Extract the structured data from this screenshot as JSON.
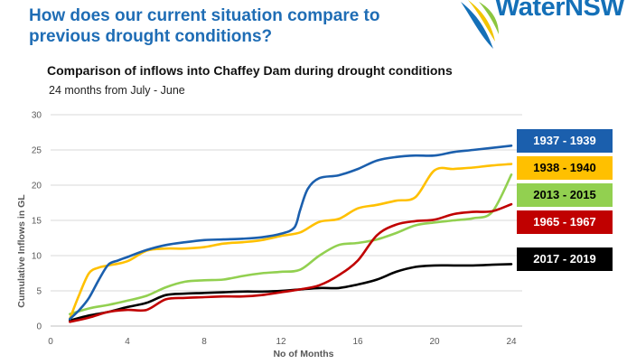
{
  "page": {
    "headline": "How does our current situation compare to previous drought conditions?",
    "logo_text": "WaterNSW"
  },
  "chart_data": {
    "type": "line",
    "title": "Comparison of inflows into Chaffey Dam during drought conditions",
    "subtitle": "24 months from July - June",
    "xlabel": "No of Months",
    "ylabel": "Cumulative Inflows in GL",
    "xlim": [
      0,
      24
    ],
    "ylim": [
      0,
      30
    ],
    "xticks": [
      0,
      4,
      8,
      12,
      16,
      20,
      24
    ],
    "yticks": [
      0,
      5,
      10,
      15,
      20,
      25,
      30
    ],
    "grid": true,
    "legend_position": "right",
    "series": [
      {
        "name": "1937 - 1939",
        "color": "#1b5fad",
        "text_color": "#ffffff",
        "x": [
          1,
          1.5,
          2,
          2.5,
          3,
          3.5,
          4,
          5,
          6,
          7,
          8,
          9,
          10,
          11,
          12,
          12.7,
          13,
          13.4,
          14,
          15,
          16,
          17,
          18,
          19,
          20,
          21,
          22,
          23,
          24
        ],
        "y": [
          1.0,
          2.3,
          4.0,
          6.5,
          8.7,
          9.3,
          9.8,
          10.8,
          11.5,
          11.9,
          12.2,
          12.3,
          12.4,
          12.6,
          13.1,
          14.0,
          16.5,
          19.5,
          21.0,
          21.4,
          22.3,
          23.5,
          24.0,
          24.2,
          24.2,
          24.7,
          25.0,
          25.3,
          25.6
        ]
      },
      {
        "name": "1938 - 1940",
        "color": "#ffc000",
        "text_color": "#000000",
        "x": [
          1,
          1.5,
          2,
          2.5,
          3,
          4,
          5,
          6,
          7,
          8,
          9,
          10,
          11,
          12,
          13,
          14,
          15,
          16,
          17,
          18,
          19,
          20,
          21,
          22,
          23,
          24
        ],
        "y": [
          1.0,
          4.5,
          7.5,
          8.3,
          8.6,
          9.2,
          10.7,
          11.0,
          11.0,
          11.2,
          11.7,
          11.9,
          12.2,
          12.8,
          13.3,
          14.8,
          15.2,
          16.7,
          17.2,
          17.8,
          18.3,
          22.1,
          22.3,
          22.5,
          22.8,
          23.0
        ]
      },
      {
        "name": "2013 - 2015",
        "color": "#92d050",
        "text_color": "#000000",
        "x": [
          1,
          2,
          3,
          4,
          5,
          6,
          7,
          8,
          9,
          10,
          11,
          12,
          13,
          14,
          15,
          16,
          17,
          18,
          19,
          20,
          21,
          22,
          23,
          24
        ],
        "y": [
          1.7,
          2.5,
          3.0,
          3.6,
          4.3,
          5.5,
          6.3,
          6.5,
          6.6,
          7.1,
          7.5,
          7.7,
          8.0,
          10.0,
          11.5,
          11.8,
          12.3,
          13.2,
          14.3,
          14.7,
          15.0,
          15.3,
          16.2,
          21.5
        ]
      },
      {
        "name": "1965 - 1967",
        "color": "#c00000",
        "text_color": "#ffffff",
        "x": [
          1,
          2,
          3,
          4,
          5,
          6,
          7,
          8,
          9,
          10,
          11,
          12,
          13,
          14,
          15,
          16,
          17,
          18,
          19,
          20,
          21,
          22,
          23,
          24
        ],
        "y": [
          0.6,
          1.2,
          2.0,
          2.3,
          2.3,
          3.8,
          4.0,
          4.1,
          4.2,
          4.2,
          4.4,
          4.8,
          5.2,
          5.8,
          7.2,
          9.3,
          12.9,
          14.4,
          14.9,
          15.1,
          15.9,
          16.2,
          16.3,
          17.3
        ]
      },
      {
        "name": "2017 - 2019",
        "color": "#000000",
        "text_color": "#ffffff",
        "x": [
          1,
          2,
          3,
          4,
          5,
          6,
          7,
          8,
          9,
          10,
          11,
          12,
          13,
          14,
          15,
          16,
          17,
          18,
          19,
          20,
          21,
          22,
          23,
          24
        ],
        "y": [
          0.8,
          1.5,
          2.0,
          2.7,
          3.3,
          4.4,
          4.6,
          4.7,
          4.8,
          4.9,
          4.9,
          5.0,
          5.2,
          5.4,
          5.4,
          5.9,
          6.6,
          7.7,
          8.4,
          8.6,
          8.6,
          8.6,
          8.7,
          8.8
        ]
      }
    ]
  }
}
